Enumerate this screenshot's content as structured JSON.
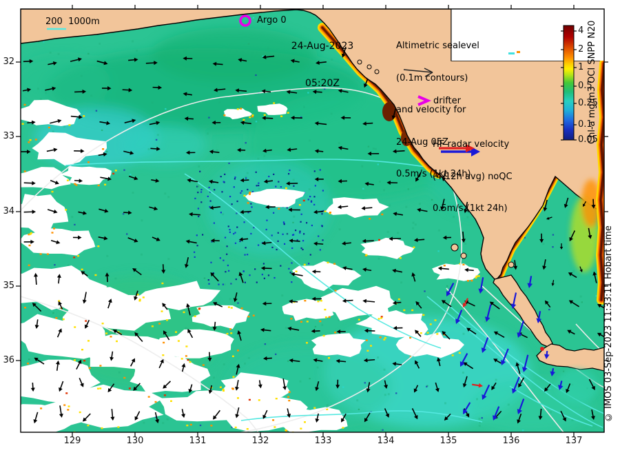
{
  "header": {
    "date_line1": "24-Aug-2023",
    "date_line2": "05:20Z"
  },
  "legend": {
    "depth_scale_label": "200  1000m",
    "argo_label": "Argo 0",
    "drifter_label": "drifter",
    "altimetric_note": [
      "Altimetric sealevel",
      "(0.1m contours)",
      "and velocity for",
      "24-Aug 05Z",
      "0.5m/s (1kt 24h)"
    ],
    "hf_radar_note": [
      "HF radar velocity",
      "(4-12h avg) noQC",
      "0.5m/s (1kt 24h)"
    ]
  },
  "colorbar": {
    "title": "Chl-a mg/m3 OCI SNPP N20",
    "tick_labels": [
      "4",
      "2",
      "1",
      "0.5",
      "0.25",
      "0.1",
      "0.05"
    ]
  },
  "credit": "© IMOS 03-Sep-2023 11:33:11 Hobart time",
  "axes": {
    "x_tick_labels": [
      "129",
      "130",
      "131",
      "132",
      "133",
      "134",
      "135",
      "136",
      "137"
    ],
    "y_tick_labels": [
      "32",
      "33",
      "34",
      "35",
      "36"
    ]
  },
  "colors": {
    "land": "#f2c59a",
    "ocean": "#2bc493",
    "cloud": "#ffffff",
    "marker_magenta": "#e800e8",
    "hf_blue": "#1818d8",
    "hf_red": "#e02020",
    "contour_white": "#ededed",
    "contour_cyan": "#55e8e0"
  },
  "chart_data": {
    "type": "heatmap",
    "title": "Chl-a mg/m3 OCI SNPP N20",
    "x_ticks": [
      129,
      130,
      131,
      132,
      133,
      134,
      135,
      136,
      137
    ],
    "y_ticks": [
      32,
      33,
      34,
      35,
      36
    ],
    "colorbar_ticks": [
      4,
      2,
      1,
      0.5,
      0.25,
      0.1,
      0.05
    ],
    "colorbar_scale": "log",
    "legend_position": "top-right"
  }
}
